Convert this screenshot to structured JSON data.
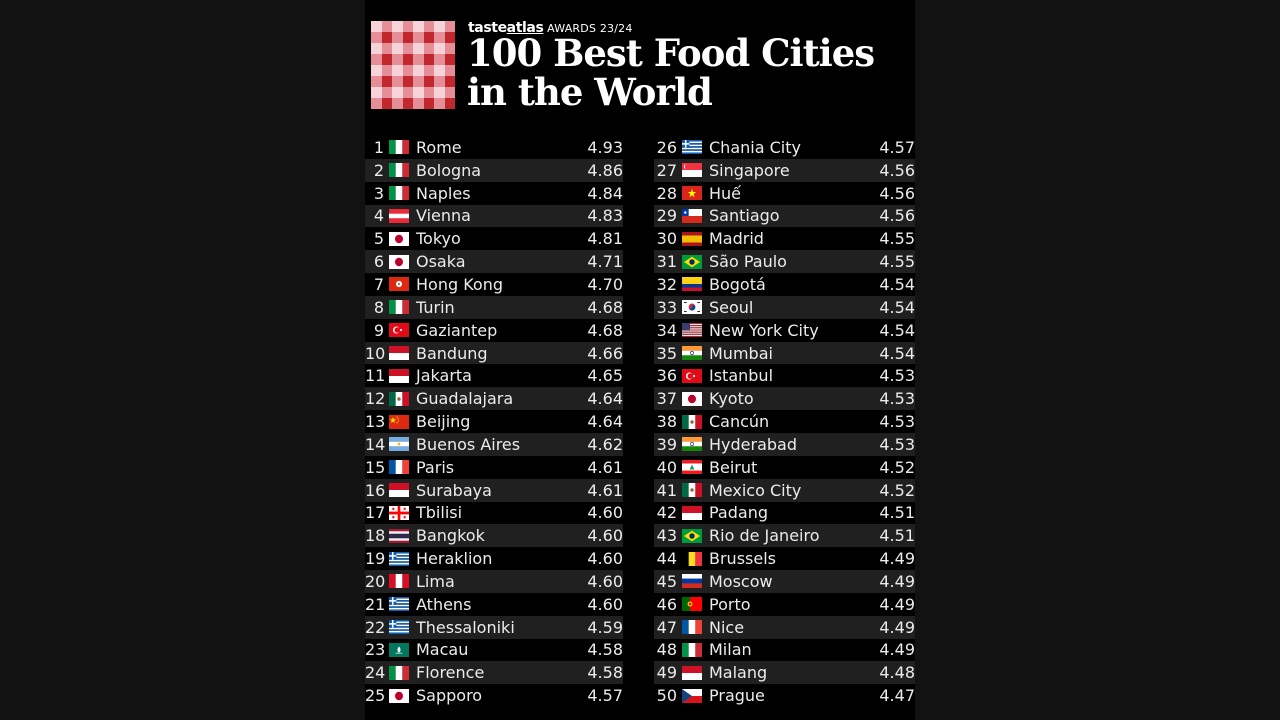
{
  "header": {
    "brand": {
      "part1": "taste",
      "part2": "atlas",
      "awards": "AWARDS 23/24"
    },
    "title_line1": "100 Best Food Cities",
    "title_line2": "in the World"
  },
  "colors": {
    "gingham_dark": "#c0282e",
    "gingham_mid": "#e58e98",
    "gingham_light": "#f6d3d8",
    "row_alt": "#202020",
    "panel_bg": "#000000"
  },
  "rankings": [
    {
      "rank": "1",
      "city": "Rome",
      "score": "4.93",
      "flag": "IT"
    },
    {
      "rank": "2",
      "city": "Bologna",
      "score": "4.86",
      "flag": "IT"
    },
    {
      "rank": "3",
      "city": "Naples",
      "score": "4.84",
      "flag": "IT"
    },
    {
      "rank": "4",
      "city": "Vienna",
      "score": "4.83",
      "flag": "AT"
    },
    {
      "rank": "5",
      "city": "Tokyo",
      "score": "4.81",
      "flag": "JP"
    },
    {
      "rank": "6",
      "city": "Osaka",
      "score": "4.71",
      "flag": "JP"
    },
    {
      "rank": "7",
      "city": "Hong Kong",
      "score": "4.70",
      "flag": "HK"
    },
    {
      "rank": "8",
      "city": "Turin",
      "score": "4.68",
      "flag": "IT"
    },
    {
      "rank": "9",
      "city": "Gaziantep",
      "score": "4.68",
      "flag": "TR"
    },
    {
      "rank": "10",
      "city": "Bandung",
      "score": "4.66",
      "flag": "ID"
    },
    {
      "rank": "11",
      "city": "Jakarta",
      "score": "4.65",
      "flag": "ID"
    },
    {
      "rank": "12",
      "city": "Guadalajara",
      "score": "4.64",
      "flag": "MX"
    },
    {
      "rank": "13",
      "city": "Beijing",
      "score": "4.64",
      "flag": "CN"
    },
    {
      "rank": "14",
      "city": "Buenos Aires",
      "score": "4.62",
      "flag": "AR"
    },
    {
      "rank": "15",
      "city": "Paris",
      "score": "4.61",
      "flag": "FR"
    },
    {
      "rank": "16",
      "city": "Surabaya",
      "score": "4.61",
      "flag": "ID"
    },
    {
      "rank": "17",
      "city": "Tbilisi",
      "score": "4.60",
      "flag": "GE"
    },
    {
      "rank": "18",
      "city": "Bangkok",
      "score": "4.60",
      "flag": "TH"
    },
    {
      "rank": "19",
      "city": "Heraklion",
      "score": "4.60",
      "flag": "GR"
    },
    {
      "rank": "20",
      "city": "Lima",
      "score": "4.60",
      "flag": "PE"
    },
    {
      "rank": "21",
      "city": "Athens",
      "score": "4.60",
      "flag": "GR"
    },
    {
      "rank": "22",
      "city": "Thessaloniki",
      "score": "4.59",
      "flag": "GR"
    },
    {
      "rank": "23",
      "city": "Macau",
      "score": "4.58",
      "flag": "MO"
    },
    {
      "rank": "24",
      "city": "Florence",
      "score": "4.58",
      "flag": "IT"
    },
    {
      "rank": "25",
      "city": "Sapporo",
      "score": "4.57",
      "flag": "JP"
    },
    {
      "rank": "26",
      "city": "Chania City",
      "score": "4.57",
      "flag": "GR"
    },
    {
      "rank": "27",
      "city": "Singapore",
      "score": "4.56",
      "flag": "SG"
    },
    {
      "rank": "28",
      "city": "Huế",
      "score": "4.56",
      "flag": "VN"
    },
    {
      "rank": "29",
      "city": "Santiago",
      "score": "4.56",
      "flag": "CL"
    },
    {
      "rank": "30",
      "city": "Madrid",
      "score": "4.55",
      "flag": "ES"
    },
    {
      "rank": "31",
      "city": "São Paulo",
      "score": "4.55",
      "flag": "BR"
    },
    {
      "rank": "32",
      "city": "Bogotá",
      "score": "4.54",
      "flag": "CO"
    },
    {
      "rank": "33",
      "city": "Seoul",
      "score": "4.54",
      "flag": "KR"
    },
    {
      "rank": "34",
      "city": "New York City",
      "score": "4.54",
      "flag": "US"
    },
    {
      "rank": "35",
      "city": "Mumbai",
      "score": "4.54",
      "flag": "IN"
    },
    {
      "rank": "36",
      "city": "Istanbul",
      "score": "4.53",
      "flag": "TR"
    },
    {
      "rank": "37",
      "city": "Kyoto",
      "score": "4.53",
      "flag": "JP"
    },
    {
      "rank": "38",
      "city": "Cancún",
      "score": "4.53",
      "flag": "MX"
    },
    {
      "rank": "39",
      "city": "Hyderabad",
      "score": "4.53",
      "flag": "IN"
    },
    {
      "rank": "40",
      "city": "Beirut",
      "score": "4.52",
      "flag": "LB"
    },
    {
      "rank": "41",
      "city": "Mexico City",
      "score": "4.52",
      "flag": "MX"
    },
    {
      "rank": "42",
      "city": "Padang",
      "score": "4.51",
      "flag": "ID"
    },
    {
      "rank": "43",
      "city": "Rio de Janeiro",
      "score": "4.51",
      "flag": "BR"
    },
    {
      "rank": "44",
      "city": "Brussels",
      "score": "4.49",
      "flag": "BE"
    },
    {
      "rank": "45",
      "city": "Moscow",
      "score": "4.49",
      "flag": "RU"
    },
    {
      "rank": "46",
      "city": "Porto",
      "score": "4.49",
      "flag": "PT"
    },
    {
      "rank": "47",
      "city": "Nice",
      "score": "4.49",
      "flag": "FR"
    },
    {
      "rank": "48",
      "city": "Milan",
      "score": "4.49",
      "flag": "IT"
    },
    {
      "rank": "49",
      "city": "Malang",
      "score": "4.48",
      "flag": "ID"
    },
    {
      "rank": "50",
      "city": "Prague",
      "score": "4.47",
      "flag": "CZ"
    }
  ]
}
